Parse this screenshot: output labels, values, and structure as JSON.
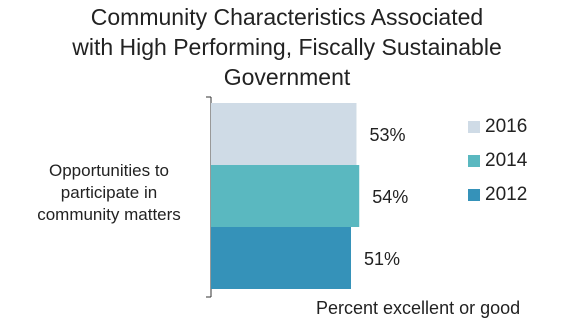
{
  "chart_data": {
    "type": "bar",
    "orientation": "horizontal",
    "title_lines": [
      "Community Characteristics Associated",
      "with High Performing, Fiscally Sustainable",
      "Government"
    ],
    "category_lines": [
      "Opportunities to",
      "participate in",
      "community matters"
    ],
    "categories": [
      "Opportunities to participate in community matters"
    ],
    "series": [
      {
        "name": "2016",
        "values": [
          53
        ],
        "label": "53%",
        "color": "#cfdbe6"
      },
      {
        "name": "2014",
        "values": [
          54
        ],
        "label": "54%",
        "color": "#5ab8c0"
      },
      {
        "name": "2012",
        "values": [
          51
        ],
        "label": "51%",
        "color": "#3592b9"
      }
    ],
    "xlabel": "Percent excellent or good",
    "xlim": [
      0,
      100
    ],
    "legend_position": "right",
    "grid": false
  }
}
